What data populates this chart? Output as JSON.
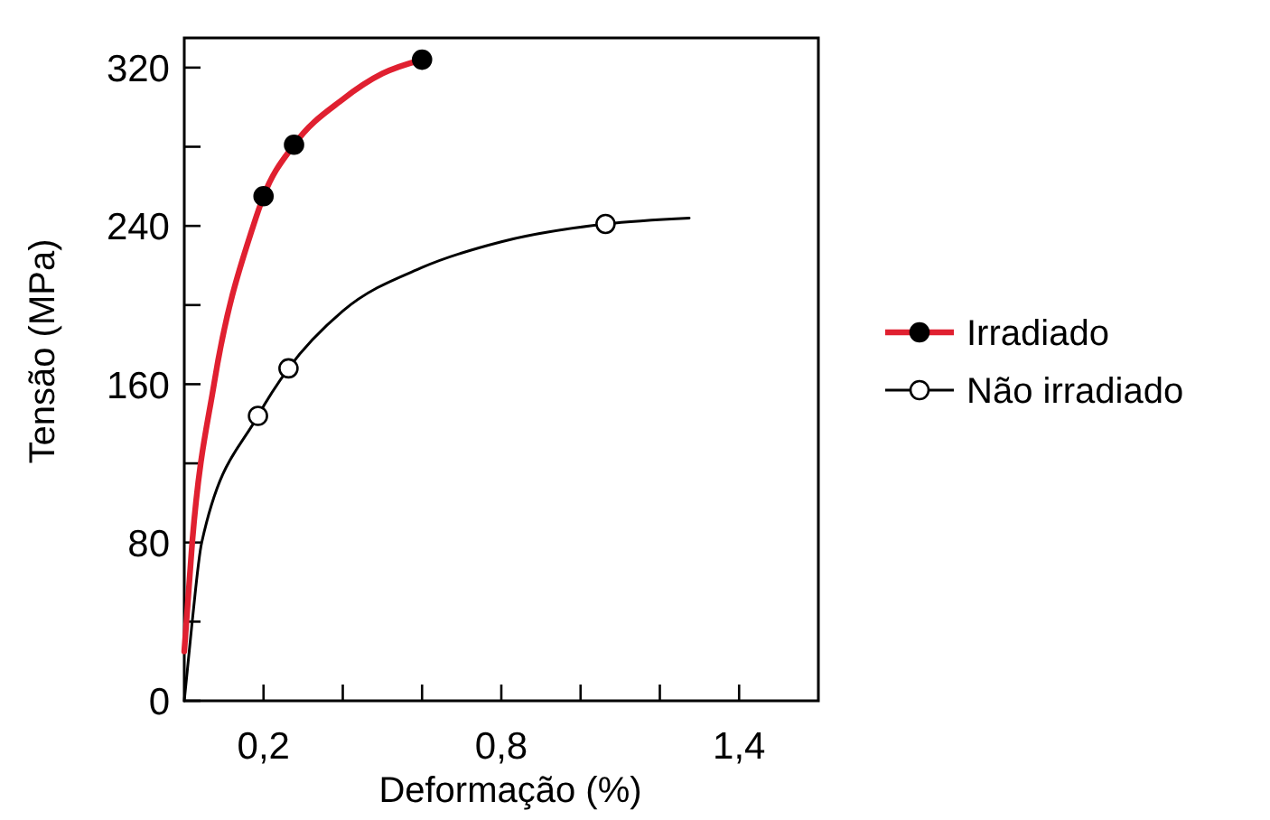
{
  "chart_data": {
    "type": "line",
    "xlabel": "Deformação (%)",
    "ylabel": "Tensão (MPa)",
    "xlim": [
      0,
      1.6
    ],
    "ylim": [
      0,
      335
    ],
    "xticks": [
      {
        "value": 0.2,
        "label": "0,2"
      },
      {
        "value": 0.4,
        "label": null
      },
      {
        "value": 0.6,
        "label": null
      },
      {
        "value": 0.8,
        "label": "0,8"
      },
      {
        "value": 1.0,
        "label": null
      },
      {
        "value": 1.2,
        "label": null
      },
      {
        "value": 1.4,
        "label": "1,4"
      }
    ],
    "yticks": [
      0,
      {
        "value": 40,
        "label": null
      },
      80,
      {
        "value": 120,
        "label": null
      },
      160,
      {
        "value": 200,
        "label": null
      },
      240,
      {
        "value": 280,
        "label": null
      },
      320
    ],
    "grid": false,
    "legend": "right",
    "series": [
      {
        "name": "Irradiado",
        "color": "#e02030",
        "marker": "none",
        "x": [
          0,
          0.02,
          0.075,
          0.174,
          0.2,
          0.277,
          0.4,
          0.5,
          0.6
        ],
        "values": [
          25,
          80,
          160,
          240,
          255,
          281,
          304,
          317,
          324
        ]
      },
      {
        "type": "scatter",
        "color": "#000000",
        "marker": "circle",
        "x": [
          0.2,
          0.277,
          0.6
        ],
        "values": [
          255,
          281,
          324
        ]
      },
      {
        "name": "Não irradiado",
        "color": "#000000",
        "marker": "none",
        "x": [
          0,
          0.02,
          0.044,
          0.186,
          0.263,
          0.4,
          0.6,
          0.8,
          1.063,
          1.274
        ],
        "values": [
          0,
          40,
          80,
          144,
          168,
          197,
          219,
          232,
          241,
          244
        ]
      },
      {
        "type": "scatter",
        "color": "#ffffff",
        "marker": "circle",
        "x": [
          0.186,
          0.263,
          1.063
        ],
        "values": [
          144,
          168,
          241
        ]
      }
    ]
  }
}
